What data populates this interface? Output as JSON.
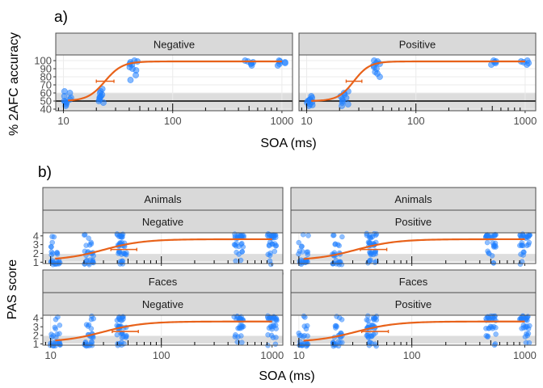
{
  "colors": {
    "points": "#1f7fff",
    "fit": "#e8621a",
    "strip_bg": "#d9d9d9",
    "strip_border": "#4d4d4d",
    "grid": "#ebebeb",
    "chance_band": "#dddddd"
  },
  "chart_data": [
    {
      "type": "scatter",
      "tag": "a)",
      "xlabel": "SOA (ms)",
      "ylabel": "% 2AFC accuracy",
      "x_scale": "log10",
      "xlim": [
        8.5,
        1250
      ],
      "ylim": [
        38,
        107
      ],
      "x_ticks": [
        10,
        100,
        1000
      ],
      "x_tick_labels": [
        "10",
        "100",
        "1000"
      ],
      "y_ticks": [
        40,
        50,
        60,
        70,
        80,
        90,
        100
      ],
      "y_tick_labels": [
        "40",
        "50",
        "60",
        "70",
        "80",
        "90",
        "100"
      ],
      "chance_line": 50,
      "grid": true,
      "panels": [
        {
          "strips": [
            "Negative"
          ],
          "points": [
            {
              "x": 11,
              "y": 44
            },
            {
              "x": 11,
              "y": 46
            },
            {
              "x": 11,
              "y": 48
            },
            {
              "x": 11,
              "y": 50
            },
            {
              "x": 11,
              "y": 52
            },
            {
              "x": 11,
              "y": 54
            },
            {
              "x": 11,
              "y": 56
            },
            {
              "x": 11,
              "y": 60
            },
            {
              "x": 11,
              "y": 62
            },
            {
              "x": 11,
              "y": 49
            },
            {
              "x": 22,
              "y": 48
            },
            {
              "x": 22,
              "y": 50
            },
            {
              "x": 22,
              "y": 52
            },
            {
              "x": 22,
              "y": 54
            },
            {
              "x": 22,
              "y": 56
            },
            {
              "x": 22,
              "y": 58
            },
            {
              "x": 22,
              "y": 60
            },
            {
              "x": 22,
              "y": 62
            },
            {
              "x": 22,
              "y": 65
            },
            {
              "x": 22,
              "y": 55
            },
            {
              "x": 44,
              "y": 76
            },
            {
              "x": 44,
              "y": 82
            },
            {
              "x": 44,
              "y": 88
            },
            {
              "x": 44,
              "y": 92
            },
            {
              "x": 44,
              "y": 95
            },
            {
              "x": 44,
              "y": 98
            },
            {
              "x": 44,
              "y": 100
            },
            {
              "x": 44,
              "y": 96
            },
            {
              "x": 44,
              "y": 90
            },
            {
              "x": 44,
              "y": 99
            },
            {
              "x": 500,
              "y": 94
            },
            {
              "x": 500,
              "y": 96
            },
            {
              "x": 500,
              "y": 98
            },
            {
              "x": 500,
              "y": 100
            },
            {
              "x": 500,
              "y": 99
            },
            {
              "x": 500,
              "y": 97
            },
            {
              "x": 1000,
              "y": 94
            },
            {
              "x": 1000,
              "y": 96
            },
            {
              "x": 1000,
              "y": 98
            },
            {
              "x": 1000,
              "y": 100
            },
            {
              "x": 1000,
              "y": 99
            },
            {
              "x": 1000,
              "y": 97
            }
          ],
          "fit": {
            "floor": 50,
            "ceiling": 99,
            "x50": 24,
            "slope": 5.5
          },
          "error_bar": {
            "x": 24,
            "xmin": 20,
            "xmax": 29,
            "y": 74.5
          }
        },
        {
          "strips": [
            "Positive"
          ],
          "points": [
            {
              "x": 11,
              "y": 44
            },
            {
              "x": 11,
              "y": 46
            },
            {
              "x": 11,
              "y": 48
            },
            {
              "x": 11,
              "y": 50
            },
            {
              "x": 11,
              "y": 52
            },
            {
              "x": 11,
              "y": 54
            },
            {
              "x": 11,
              "y": 56
            },
            {
              "x": 11,
              "y": 45
            },
            {
              "x": 11,
              "y": 49
            },
            {
              "x": 11,
              "y": 51
            },
            {
              "x": 22,
              "y": 44
            },
            {
              "x": 22,
              "y": 46
            },
            {
              "x": 22,
              "y": 50
            },
            {
              "x": 22,
              "y": 52
            },
            {
              "x": 22,
              "y": 54
            },
            {
              "x": 22,
              "y": 56
            },
            {
              "x": 22,
              "y": 58
            },
            {
              "x": 22,
              "y": 60
            },
            {
              "x": 22,
              "y": 62
            },
            {
              "x": 22,
              "y": 48
            },
            {
              "x": 44,
              "y": 80
            },
            {
              "x": 44,
              "y": 86
            },
            {
              "x": 44,
              "y": 90
            },
            {
              "x": 44,
              "y": 94
            },
            {
              "x": 44,
              "y": 97
            },
            {
              "x": 44,
              "y": 99
            },
            {
              "x": 44,
              "y": 100
            },
            {
              "x": 44,
              "y": 96
            },
            {
              "x": 44,
              "y": 92
            },
            {
              "x": 44,
              "y": 84
            },
            {
              "x": 500,
              "y": 95
            },
            {
              "x": 500,
              "y": 97
            },
            {
              "x": 500,
              "y": 99
            },
            {
              "x": 500,
              "y": 100
            },
            {
              "x": 500,
              "y": 98
            },
            {
              "x": 1000,
              "y": 95
            },
            {
              "x": 1000,
              "y": 97
            },
            {
              "x": 1000,
              "y": 99
            },
            {
              "x": 1000,
              "y": 100
            },
            {
              "x": 1000,
              "y": 98
            }
          ],
          "fit": {
            "floor": 50,
            "ceiling": 99,
            "x50": 27,
            "slope": 6
          },
          "error_bar": {
            "x": 27,
            "xmin": 23,
            "xmax": 32,
            "y": 74.5
          }
        }
      ]
    },
    {
      "type": "scatter",
      "tag": "b)",
      "xlabel": "SOA (ms)",
      "ylabel": "PAS score",
      "x_scale": "log10",
      "xlim": [
        8.5,
        1250
      ],
      "ylim": [
        0.85,
        4.35
      ],
      "x_ticks": [
        10,
        100,
        1000
      ],
      "x_tick_labels": [
        "10",
        "100",
        "1000"
      ],
      "y_ticks": [
        1,
        2,
        3,
        4
      ],
      "y_tick_labels": [
        "1",
        "2",
        "3",
        "4"
      ],
      "band": [
        1,
        2
      ],
      "grid": true,
      "panels": [
        {
          "strips": [
            "Animals",
            "Negative"
          ],
          "points": [],
          "fit": {
            "floor": 1.2,
            "ceiling": 3.62,
            "x50": 30,
            "slope": 2.4
          },
          "error_bar": {
            "x": 44,
            "xmin": 35,
            "xmax": 60,
            "y": 2.45
          }
        },
        {
          "strips": [
            "Animals",
            "Positive"
          ],
          "points": [],
          "fit": {
            "floor": 1.2,
            "ceiling": 3.62,
            "x50": 32,
            "slope": 2.4
          },
          "error_bar": {
            "x": 44,
            "xmin": 35,
            "xmax": 60,
            "y": 2.45
          }
        },
        {
          "strips": [
            "Faces",
            "Negative"
          ],
          "points": [],
          "fit": {
            "floor": 1.2,
            "ceiling": 3.62,
            "x50": 30,
            "slope": 2.4
          },
          "error_bar": {
            "x": 46,
            "xmin": 36,
            "xmax": 62,
            "y": 2.45
          }
        },
        {
          "strips": [
            "Faces",
            "Positive"
          ],
          "points": [],
          "fit": {
            "floor": 1.2,
            "ceiling": 3.62,
            "x50": 32,
            "slope": 2.4
          },
          "error_bar": {
            "x": 46,
            "xmin": 36,
            "xmax": 62,
            "y": 2.45
          }
        }
      ],
      "pas_columns": [
        {
          "x": 11,
          "levels": [
            {
              "y": 1,
              "count": 14
            },
            {
              "y": 2,
              "count": 6
            },
            {
              "y": 3,
              "count": 3
            },
            {
              "y": 4,
              "count": 2
            }
          ]
        },
        {
          "x": 22,
          "levels": [
            {
              "y": 1,
              "count": 12
            },
            {
              "y": 2,
              "count": 8
            },
            {
              "y": 3,
              "count": 4
            },
            {
              "y": 4,
              "count": 3
            }
          ]
        },
        {
          "x": 44,
          "levels": [
            {
              "y": 1,
              "count": 6
            },
            {
              "y": 2,
              "count": 10
            },
            {
              "y": 3,
              "count": 12
            },
            {
              "y": 4,
              "count": 10
            }
          ]
        },
        {
          "x": 500,
          "levels": [
            {
              "y": 1,
              "count": 2
            },
            {
              "y": 2,
              "count": 4
            },
            {
              "y": 3,
              "count": 8
            },
            {
              "y": 4,
              "count": 16
            }
          ]
        },
        {
          "x": 1000,
          "levels": [
            {
              "y": 1,
              "count": 2
            },
            {
              "y": 2,
              "count": 4
            },
            {
              "y": 3,
              "count": 8
            },
            {
              "y": 4,
              "count": 16
            }
          ]
        }
      ]
    }
  ]
}
